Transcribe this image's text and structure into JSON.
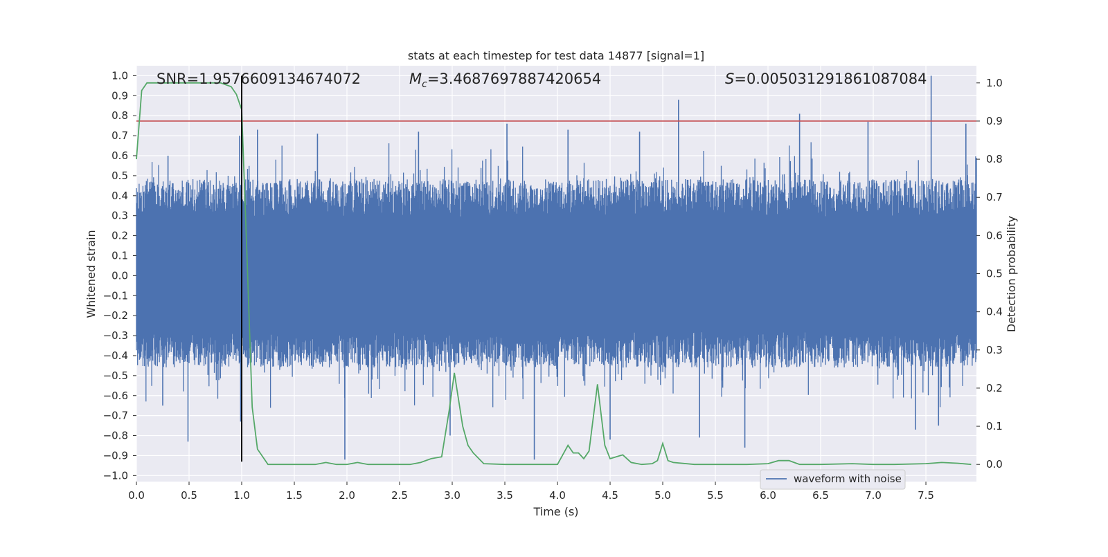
{
  "chart_data": {
    "type": "line",
    "title": "stats at each timestep for test data 14877 [signal=1]",
    "xlabel": "Time (s)",
    "ylabel_left": "Whitened strain",
    "ylabel_right": "Detection probability",
    "xlim": [
      0,
      7.98
    ],
    "ylim_left": [
      -1.03,
      1.05
    ],
    "ylim_right": [
      -0.045,
      1.045
    ],
    "x_ticks": [
      0.0,
      0.5,
      1.0,
      1.5,
      2.0,
      2.5,
      3.0,
      3.5,
      4.0,
      4.5,
      5.0,
      5.5,
      6.0,
      6.5,
      7.0,
      7.5
    ],
    "x_tick_labels": [
      "0.0",
      "0.5",
      "1.0",
      "1.5",
      "2.0",
      "2.5",
      "3.0",
      "3.5",
      "4.0",
      "4.5",
      "5.0",
      "5.5",
      "6.0",
      "6.5",
      "7.0",
      "7.5"
    ],
    "y_left_ticks": [
      -1.0,
      -0.9,
      -0.8,
      -0.7,
      -0.6,
      -0.5,
      -0.4,
      -0.3,
      -0.2,
      -0.1,
      0.0,
      0.1,
      0.2,
      0.3,
      0.4,
      0.5,
      0.6,
      0.7,
      0.8,
      0.9,
      1.0
    ],
    "y_left_tick_labels": [
      "−1.0",
      "−0.9",
      "−0.8",
      "−0.7",
      "−0.6",
      "−0.5",
      "−0.4",
      "−0.3",
      "−0.2",
      "−0.1",
      "0.0",
      "0.1",
      "0.2",
      "0.3",
      "0.4",
      "0.5",
      "0.6",
      "0.7",
      "0.8",
      "0.9",
      "1.0"
    ],
    "y_right_ticks": [
      0.0,
      0.1,
      0.2,
      0.3,
      0.4,
      0.5,
      0.6,
      0.7,
      0.8,
      0.9,
      1.0
    ],
    "y_right_tick_labels": [
      "0.0",
      "0.1",
      "0.2",
      "0.3",
      "0.4",
      "0.5",
      "0.6",
      "0.7",
      "0.8",
      "0.9",
      "1.0"
    ],
    "grid": true,
    "legend": {
      "position": "lower-right",
      "entries": [
        {
          "label": "waveform with noise",
          "color": "#4c72b0"
        }
      ]
    },
    "annotations": {
      "snr": {
        "prefix": "SNR=",
        "value": "1.9576609134674072"
      },
      "mc": {
        "symbol": "M",
        "subscript": "c",
        "value": "=3.4687697887420654"
      },
      "s": {
        "symbol": "S",
        "value": "=0.005031291861087084"
      }
    },
    "colors": {
      "waveform": "#4c72b0",
      "probability": "#55a868",
      "threshold": "#c44e52",
      "marker": "#000000",
      "axes_bg": "#eaeaf2",
      "grid": "#ffffff"
    },
    "threshold": {
      "axis": "right",
      "value": 0.9
    },
    "marker_line": {
      "x": 1.0,
      "y_range_left": [
        -0.93,
        1.0
      ]
    },
    "waveform": {
      "name": "waveform with noise",
      "duration_s": 7.98,
      "envelope_upper_typical": 0.42,
      "envelope_lower_typical": -0.4,
      "spikes": [
        {
          "x": 0.3,
          "y": 0.6
        },
        {
          "x": 0.25,
          "y": -0.65
        },
        {
          "x": 0.49,
          "y": -0.83
        },
        {
          "x": 0.98,
          "y": 0.7
        },
        {
          "x": 0.99,
          "y": -0.73
        },
        {
          "x": 1.15,
          "y": 0.73
        },
        {
          "x": 1.72,
          "y": 0.71
        },
        {
          "x": 1.98,
          "y": -0.92
        },
        {
          "x": 2.68,
          "y": 0.72
        },
        {
          "x": 2.98,
          "y": -0.8
        },
        {
          "x": 3.52,
          "y": 0.76
        },
        {
          "x": 3.78,
          "y": -0.92
        },
        {
          "x": 4.1,
          "y": 0.73
        },
        {
          "x": 4.5,
          "y": -0.82
        },
        {
          "x": 4.78,
          "y": 0.72
        },
        {
          "x": 5.15,
          "y": 0.88
        },
        {
          "x": 5.35,
          "y": -0.81
        },
        {
          "x": 5.78,
          "y": -0.86
        },
        {
          "x": 6.3,
          "y": 0.81
        },
        {
          "x": 6.95,
          "y": 0.77
        },
        {
          "x": 7.4,
          "y": -0.77
        },
        {
          "x": 7.55,
          "y": 1.0
        },
        {
          "x": 7.62,
          "y": -0.75
        },
        {
          "x": 7.88,
          "y": 0.76
        }
      ]
    },
    "probability": {
      "name": "detection probability",
      "x": [
        0.0,
        0.05,
        0.1,
        0.2,
        0.4,
        0.6,
        0.8,
        0.9,
        0.95,
        1.0,
        1.05,
        1.1,
        1.15,
        1.25,
        1.4,
        1.6,
        1.7,
        1.8,
        1.9,
        2.0,
        2.1,
        2.2,
        2.4,
        2.6,
        2.7,
        2.8,
        2.9,
        2.97,
        3.02,
        3.1,
        3.15,
        3.2,
        3.3,
        3.5,
        3.8,
        4.0,
        4.05,
        4.1,
        4.15,
        4.2,
        4.25,
        4.3,
        4.38,
        4.45,
        4.5,
        4.62,
        4.7,
        4.8,
        4.9,
        4.95,
        5.0,
        5.05,
        5.1,
        5.3,
        5.6,
        5.8,
        6.0,
        6.1,
        6.2,
        6.3,
        6.5,
        6.8,
        7.0,
        7.2,
        7.5,
        7.65,
        7.8,
        7.93
      ],
      "y": [
        0.8,
        0.98,
        1.0,
        1.0,
        1.0,
        1.0,
        1.0,
        0.99,
        0.97,
        0.93,
        0.55,
        0.15,
        0.04,
        0.0,
        0.0,
        0.0,
        0.0,
        0.005,
        0.0,
        0.0,
        0.005,
        0.0,
        0.0,
        0.0,
        0.005,
        0.015,
        0.02,
        0.14,
        0.24,
        0.1,
        0.05,
        0.03,
        0.002,
        0.0,
        0.0,
        0.0,
        0.025,
        0.05,
        0.03,
        0.03,
        0.015,
        0.035,
        0.21,
        0.05,
        0.015,
        0.025,
        0.005,
        0.0,
        0.002,
        0.01,
        0.055,
        0.01,
        0.005,
        0.0,
        0.0,
        0.0,
        0.002,
        0.01,
        0.01,
        0.0,
        0.0,
        0.002,
        0.0,
        0.0,
        0.002,
        0.005,
        0.003,
        0.0
      ]
    }
  }
}
